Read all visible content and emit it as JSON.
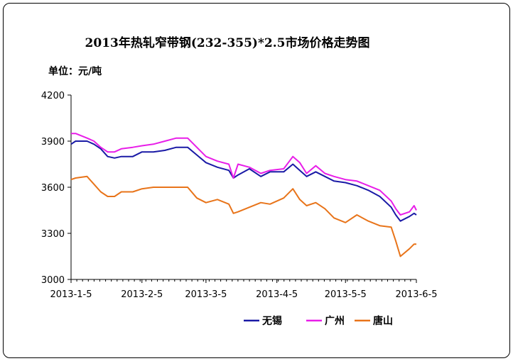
{
  "chart_data": {
    "type": "line",
    "title": "2013年热轧窄带钢(232-355)*2.5市场价格走势图",
    "unit_label": "单位：元/吨",
    "xlabel": "",
    "ylabel": "",
    "ylim": [
      3000,
      4200
    ],
    "yticks": [
      3000,
      3300,
      3600,
      3900,
      4200
    ],
    "xticks": [
      "2013-1-5",
      "2013-2-5",
      "2013-3-5",
      "2013-4-5",
      "2013-5-5",
      "2013-6-5"
    ],
    "x_range": [
      "2013-01-05",
      "2013-06-05"
    ],
    "grid": false,
    "legend": "bottom",
    "colors": {
      "无锡": "#1a1aa6",
      "广州": "#e81ee8",
      "唐山": "#e8741a"
    },
    "series": [
      {
        "name": "无锡",
        "x": [
          "2013-01-05",
          "2013-01-07",
          "2013-01-12",
          "2013-01-15",
          "2013-01-18",
          "2013-01-21",
          "2013-01-24",
          "2013-01-27",
          "2013-02-01",
          "2013-02-05",
          "2013-02-10",
          "2013-02-15",
          "2013-02-20",
          "2013-02-25",
          "2013-03-01",
          "2013-03-05",
          "2013-03-10",
          "2013-03-15",
          "2013-03-17",
          "2013-03-19",
          "2013-03-24",
          "2013-03-29",
          "2013-04-02",
          "2013-04-08",
          "2013-04-12",
          "2013-04-15",
          "2013-04-18",
          "2013-04-22",
          "2013-04-26",
          "2013-04-30",
          "2013-05-05",
          "2013-05-10",
          "2013-05-15",
          "2013-05-20",
          "2013-05-25",
          "2013-05-27",
          "2013-05-29",
          "2013-06-02",
          "2013-06-04",
          "2013-06-05"
        ],
        "values": [
          3880,
          3900,
          3900,
          3880,
          3850,
          3800,
          3790,
          3800,
          3800,
          3830,
          3830,
          3840,
          3860,
          3860,
          3810,
          3760,
          3730,
          3710,
          3660,
          3680,
          3720,
          3670,
          3700,
          3700,
          3750,
          3710,
          3670,
          3700,
          3670,
          3640,
          3630,
          3610,
          3580,
          3540,
          3470,
          3420,
          3380,
          3410,
          3430,
          3420
        ]
      },
      {
        "name": "广州",
        "x": [
          "2013-01-05",
          "2013-01-07",
          "2013-01-12",
          "2013-01-15",
          "2013-01-18",
          "2013-01-21",
          "2013-01-24",
          "2013-01-27",
          "2013-02-01",
          "2013-02-05",
          "2013-02-10",
          "2013-02-15",
          "2013-02-20",
          "2013-02-25",
          "2013-03-01",
          "2013-03-05",
          "2013-03-10",
          "2013-03-15",
          "2013-03-17",
          "2013-03-19",
          "2013-03-24",
          "2013-03-29",
          "2013-04-02",
          "2013-04-08",
          "2013-04-12",
          "2013-04-15",
          "2013-04-18",
          "2013-04-22",
          "2013-04-26",
          "2013-04-30",
          "2013-05-05",
          "2013-05-10",
          "2013-05-15",
          "2013-05-20",
          "2013-05-25",
          "2013-05-27",
          "2013-05-29",
          "2013-06-02",
          "2013-06-04",
          "2013-06-05"
        ],
        "values": [
          3950,
          3950,
          3920,
          3900,
          3860,
          3830,
          3830,
          3850,
          3860,
          3870,
          3880,
          3900,
          3920,
          3920,
          3860,
          3800,
          3770,
          3750,
          3660,
          3750,
          3730,
          3690,
          3710,
          3720,
          3800,
          3760,
          3690,
          3740,
          3690,
          3670,
          3650,
          3640,
          3610,
          3580,
          3510,
          3460,
          3420,
          3440,
          3480,
          3450
        ]
      },
      {
        "name": "唐山",
        "x": [
          "2013-01-05",
          "2013-01-07",
          "2013-01-12",
          "2013-01-15",
          "2013-01-18",
          "2013-01-21",
          "2013-01-24",
          "2013-01-27",
          "2013-02-01",
          "2013-02-05",
          "2013-02-10",
          "2013-02-15",
          "2013-02-20",
          "2013-02-25",
          "2013-03-01",
          "2013-03-05",
          "2013-03-10",
          "2013-03-15",
          "2013-03-17",
          "2013-03-19",
          "2013-03-24",
          "2013-03-29",
          "2013-04-02",
          "2013-04-08",
          "2013-04-12",
          "2013-04-15",
          "2013-04-18",
          "2013-04-22",
          "2013-04-26",
          "2013-04-30",
          "2013-05-05",
          "2013-05-10",
          "2013-05-15",
          "2013-05-20",
          "2013-05-25",
          "2013-05-27",
          "2013-05-29",
          "2013-06-02",
          "2013-06-04",
          "2013-06-05"
        ],
        "values": [
          3650,
          3660,
          3670,
          3620,
          3570,
          3540,
          3540,
          3570,
          3570,
          3590,
          3600,
          3600,
          3600,
          3600,
          3530,
          3500,
          3520,
          3490,
          3430,
          3440,
          3470,
          3500,
          3490,
          3530,
          3590,
          3520,
          3480,
          3500,
          3460,
          3400,
          3370,
          3420,
          3380,
          3350,
          3340,
          3250,
          3150,
          3200,
          3230,
          3230
        ]
      }
    ]
  }
}
